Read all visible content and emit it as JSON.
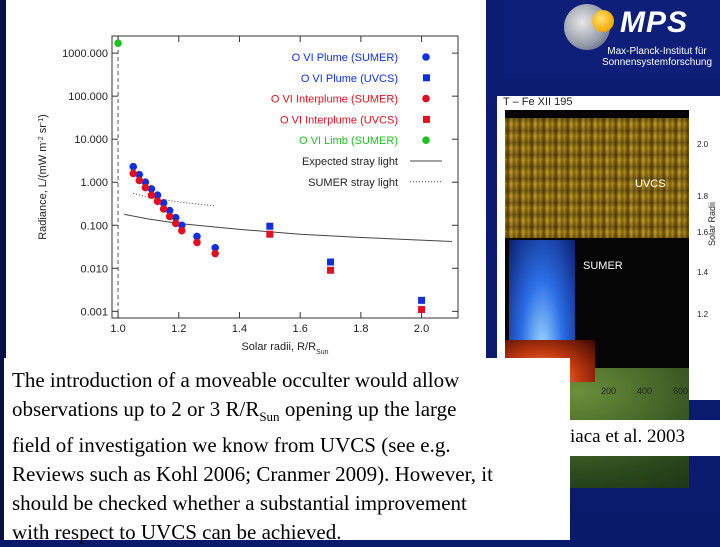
{
  "logo": {
    "name": "MPS",
    "line1": "Max-Planck-Institut für",
    "line2": "Sonnensystemforschung"
  },
  "chart_data": {
    "type": "scatter",
    "title": "",
    "xlabel": "Solar radii, R/R",
    "xlabel_sub": "Sun",
    "ylabel": "Radiance, L/(mW m",
    "ylabel_sup1": "-2",
    "ylabel_mid": " sr",
    "ylabel_sup2": "-1",
    "ylabel_end": ")",
    "x_ticks": [
      "1.0",
      "1.2",
      "1.4",
      "1.6",
      "1.8",
      "2.0"
    ],
    "y_ticks": [
      "1000.000",
      "100.000",
      "10.000",
      "1.000",
      "0.100",
      "0.010",
      "0.001"
    ],
    "xlim": [
      0.98,
      2.12
    ],
    "ylim": [
      0.0007,
      2500
    ],
    "y_scale": "log",
    "legend_position": "top-right",
    "series": [
      {
        "name": "O VI Plume (SUMER)",
        "color": "#1030e0",
        "marker": "circle",
        "points": [
          [
            1.05,
            2.3
          ],
          [
            1.07,
            1.5
          ],
          [
            1.09,
            1.0
          ],
          [
            1.11,
            0.7
          ],
          [
            1.13,
            0.5
          ],
          [
            1.15,
            0.33
          ],
          [
            1.17,
            0.22
          ],
          [
            1.19,
            0.15
          ],
          [
            1.21,
            0.1
          ],
          [
            1.26,
            0.055
          ],
          [
            1.32,
            0.03
          ]
        ]
      },
      {
        "name": "O VI Plume (UVCS)",
        "color": "#1030e0",
        "marker": "square",
        "points": [
          [
            1.5,
            0.095
          ],
          [
            1.7,
            0.014
          ],
          [
            2.0,
            0.0018
          ]
        ]
      },
      {
        "name": "O VI Interplume (SUMER)",
        "color": "#e01020",
        "marker": "circle",
        "points": [
          [
            1.05,
            1.6
          ],
          [
            1.07,
            1.1
          ],
          [
            1.09,
            0.75
          ],
          [
            1.11,
            0.5
          ],
          [
            1.13,
            0.36
          ],
          [
            1.15,
            0.24
          ],
          [
            1.17,
            0.16
          ],
          [
            1.19,
            0.11
          ],
          [
            1.21,
            0.075
          ],
          [
            1.26,
            0.04
          ],
          [
            1.32,
            0.022
          ]
        ]
      },
      {
        "name": "O VI Interplume (UVCS)",
        "color": "#e01020",
        "marker": "square",
        "points": [
          [
            1.5,
            0.062
          ],
          [
            1.7,
            0.009
          ],
          [
            2.0,
            0.0011
          ]
        ]
      },
      {
        "name": "O VI Limb (SUMER)",
        "color": "#20c020",
        "marker": "circle",
        "points": [
          [
            1.0,
            1700
          ]
        ]
      }
    ],
    "lines": [
      {
        "name": "Expected stray light",
        "style": "solid",
        "points": [
          [
            1.02,
            0.18
          ],
          [
            1.1,
            0.14
          ],
          [
            1.2,
            0.11
          ],
          [
            1.4,
            0.08
          ],
          [
            1.6,
            0.062
          ],
          [
            1.8,
            0.052
          ],
          [
            2.1,
            0.042
          ]
        ]
      },
      {
        "name": "SUMER stray light",
        "style": "dotted",
        "points": [
          [
            1.05,
            0.55
          ],
          [
            1.1,
            0.45
          ],
          [
            1.2,
            0.35
          ],
          [
            1.32,
            0.28
          ]
        ]
      }
    ]
  },
  "composite": {
    "title": "T – Fe XII 195",
    "uvcs_label": "UVCS",
    "sumer_label": "SUMER",
    "y_ticks": [
      "2.0",
      "1.8",
      "1.6",
      "1.4",
      "1.2"
    ],
    "y_label": "Solar Radii",
    "x_ticks": [
      "200",
      "400",
      "600"
    ]
  },
  "caption": {
    "line1": "The introduction of a moveable occulter would allow",
    "line2_pre": "observations up to 2 or 3 R/R",
    "line2_sub": "Sun",
    "line2_post": " opening up the large",
    "line3": "field of investigation we know from UVCS (see e.g.",
    "line4": "Reviews such as Kohl 2006; Cranmer 2009). However, it",
    "line5": "should be checked whether a substantial improvement",
    "line6": "with respect to UVCS can be achieved.",
    "citation": "iaca et al. 2003"
  }
}
